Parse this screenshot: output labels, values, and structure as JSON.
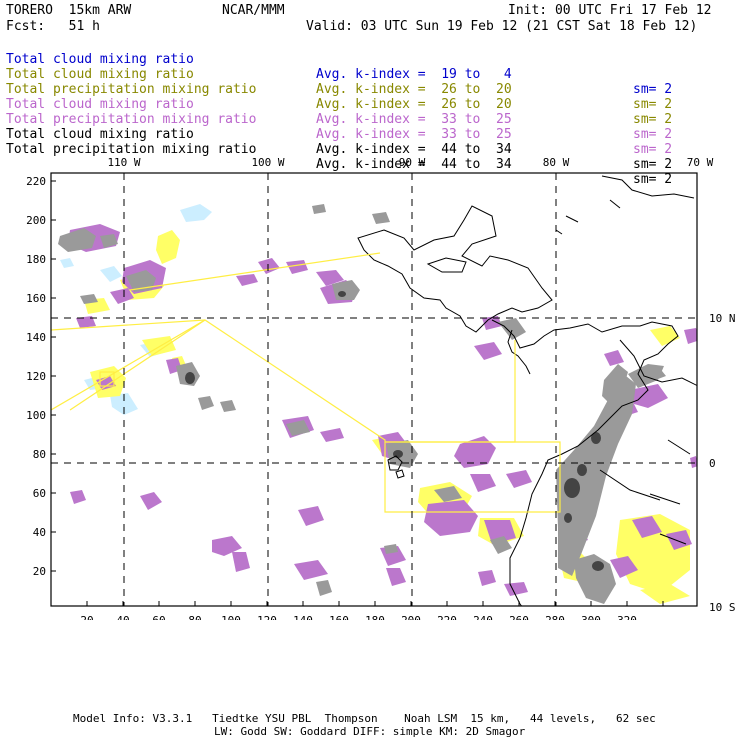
{
  "header": {
    "model": "TORERO  15km ARW",
    "org": "NCAR/MMM",
    "init": "Init: 00 UTC Fri 17 Feb 12",
    "fcst": "Fcst:   51 h",
    "valid": "Valid: 03 UTC Sun 19 Feb 12 (21 CST Sat 18 Feb 12)"
  },
  "legend": [
    {
      "field": "Total cloud mixing ratio",
      "index": "Avg. k-index =  19 to   4",
      "sm": "sm= 2",
      "color": "#0000cc"
    },
    {
      "field": "Total cloud mixing ratio",
      "index": "Avg. k-index =  26 to  20",
      "sm": "sm= 2",
      "color": "#888800"
    },
    {
      "field": "Total precipitation mixing ratio",
      "index": "Avg. k-index =  26 to  20",
      "sm": "sm= 2",
      "color": "#888800"
    },
    {
      "field": "Total cloud mixing ratio",
      "index": "Avg. k-index =  33 to  25",
      "sm": "sm= 2",
      "color": "#bb66cc"
    },
    {
      "field": "Total precipitation mixing ratio",
      "index": "Avg. k-index =  33 to  25",
      "sm": "sm= 2",
      "color": "#bb66cc"
    },
    {
      "field": "Total cloud mixing ratio",
      "index": "Avg. k-index =  44 to  34",
      "sm": "sm= 2",
      "color": "#000000"
    },
    {
      "field": "Total precipitation mixing ratio",
      "index": "Avg. k-index =  44 to  34",
      "sm": "sm= 2",
      "color": "#000000"
    }
  ],
  "axes": {
    "top_lon": [
      "110 W",
      "100 W",
      "90 W",
      "80 W",
      "70 W"
    ],
    "right_lat": [
      "10 N",
      "0",
      "10 S"
    ],
    "bottom_grid": [
      "20",
      "40",
      "60",
      "80",
      "100",
      "120",
      "140",
      "160",
      "180",
      "200",
      "220",
      "240",
      "260",
      "280",
      "300",
      "320"
    ],
    "left_grid": [
      "220",
      "200",
      "180",
      "160",
      "140",
      "120",
      "100",
      "80",
      "60",
      "40",
      "20"
    ]
  },
  "footer": {
    "line1": "Model Info: V3.3.1   Tiedtke YSU PBL  Thompson    Noah LSM  15 km,   44 levels,   62 sec",
    "line2": "LW: Godd SW: Goddard DIFF: simple KM: 2D Smagor"
  }
}
